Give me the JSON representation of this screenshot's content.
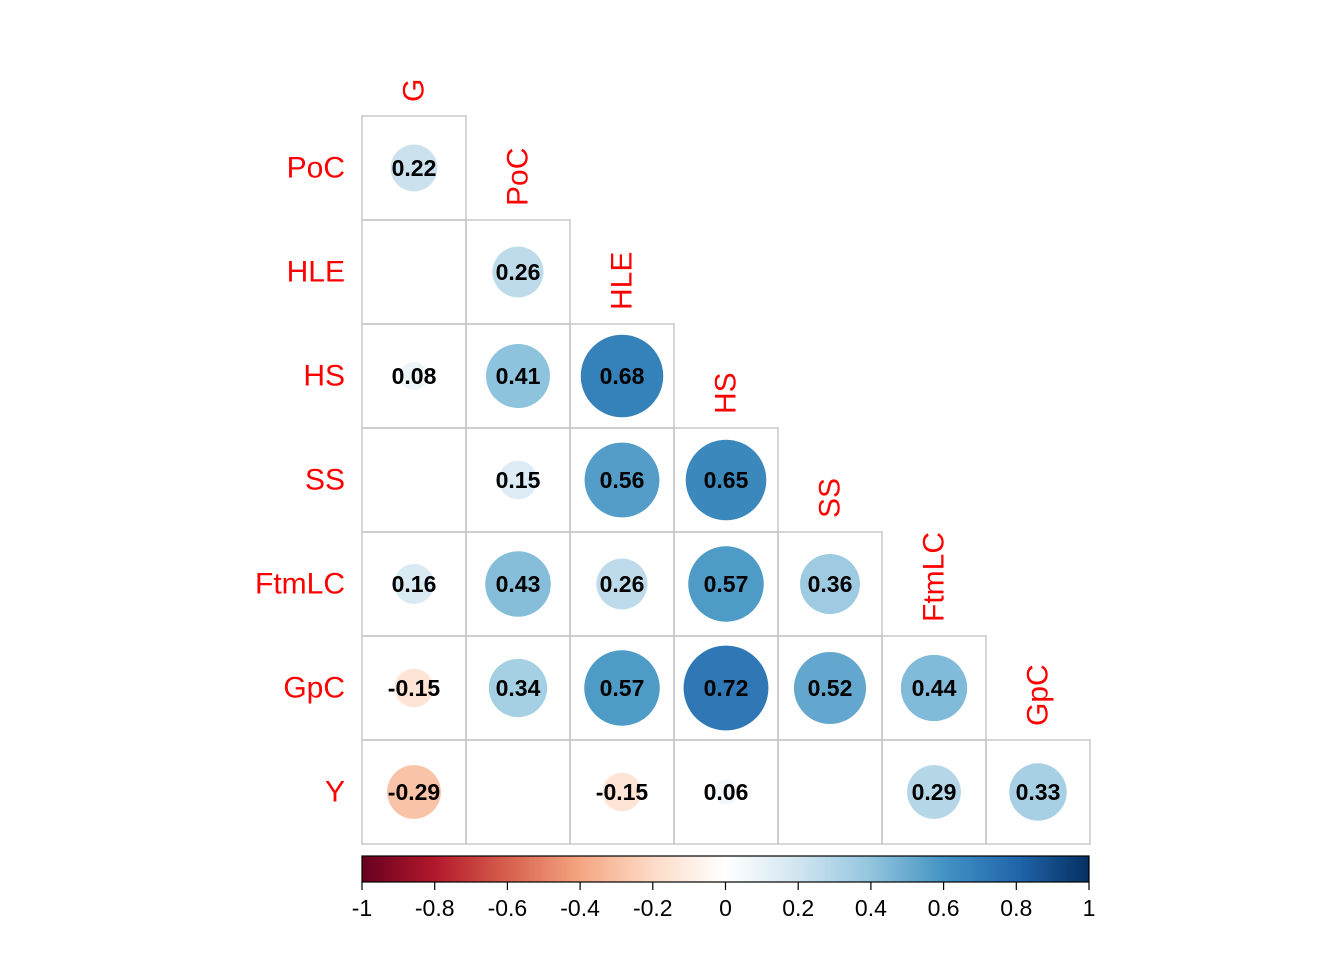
{
  "chart_data": {
    "type": "heatmap",
    "variables": [
      "G",
      "PoC",
      "HLE",
      "HS",
      "SS",
      "FtmLC",
      "GpC",
      "Y"
    ],
    "rows": [
      "PoC",
      "HLE",
      "HS",
      "SS",
      "FtmLC",
      "GpC",
      "Y"
    ],
    "columns": [
      "G",
      "PoC",
      "HLE",
      "HS",
      "SS",
      "FtmLC",
      "GpC"
    ],
    "matrix": [
      [
        0.22,
        null,
        null,
        null,
        null,
        null,
        null
      ],
      [
        null,
        0.26,
        null,
        null,
        null,
        null,
        null
      ],
      [
        0.08,
        0.41,
        0.68,
        null,
        null,
        null,
        null
      ],
      [
        null,
        0.15,
        0.56,
        0.65,
        null,
        null,
        null
      ],
      [
        0.16,
        0.43,
        0.26,
        0.57,
        0.36,
        null,
        null
      ],
      [
        -0.15,
        0.34,
        0.57,
        0.72,
        0.52,
        0.44,
        null
      ],
      [
        -0.29,
        null,
        -0.15,
        0.06,
        null,
        0.29,
        0.33
      ]
    ],
    "matrix_labels": [
      [
        "0.22",
        null,
        null,
        null,
        null,
        null,
        null
      ],
      [
        null,
        "0.26",
        null,
        null,
        null,
        null,
        null
      ],
      [
        "0.08",
        "0.41",
        "0.68",
        null,
        null,
        null,
        null
      ],
      [
        null,
        "0.15",
        "0.56",
        "0.65",
        null,
        null,
        null
      ],
      [
        "0.16",
        "0.43",
        "0.26",
        "0.57",
        "0.36",
        null,
        null
      ],
      [
        "-0.15",
        "0.34",
        "0.57",
        "0.72",
        "0.52",
        "0.44",
        null
      ],
      [
        "-0.29",
        null,
        "-0.15",
        "0.06",
        null,
        "0.29",
        "0.33"
      ]
    ],
    "shape": "lower triangle",
    "method": "circle",
    "colorbar": {
      "range": [
        -1,
        1
      ],
      "ticks": [
        -1,
        -0.8,
        -0.6,
        -0.4,
        -0.2,
        0,
        0.2,
        0.4,
        0.6,
        0.8,
        1
      ],
      "tick_labels": [
        "-1",
        "-0.8",
        "-0.6",
        "-0.4",
        "-0.2",
        "0",
        "0.2",
        "0.4",
        "0.6",
        "0.8",
        "1"
      ],
      "placement": "bottom",
      "colors": [
        "#67001F",
        "#B2182B",
        "#D6604D",
        "#F4A582",
        "#FDDBC7",
        "#FFFFFF",
        "#D1E5F0",
        "#92C5DE",
        "#4393C3",
        "#2166AC",
        "#053061"
      ]
    },
    "label_color": "#FF0000",
    "grid": true
  }
}
